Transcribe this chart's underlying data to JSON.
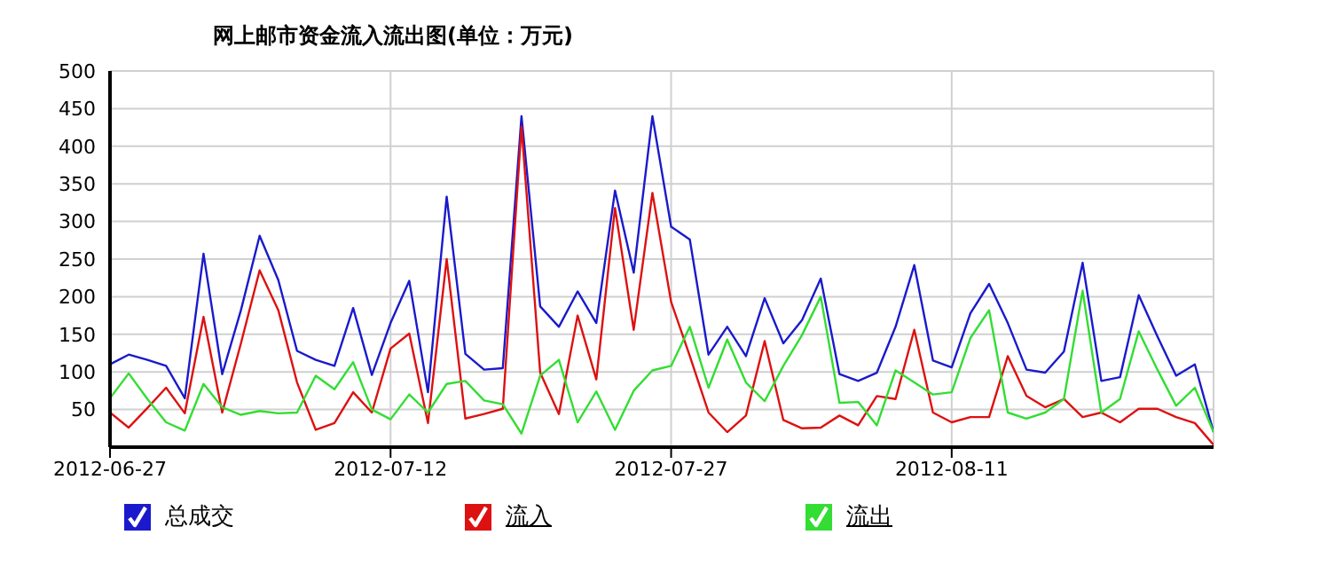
{
  "chart_data": {
    "type": "line",
    "title": "网上邮市资金流入流出图(单位：万元)",
    "x": [
      "2012-06-27",
      "2012-06-28",
      "2012-06-29",
      "2012-06-30",
      "2012-07-01",
      "2012-07-02",
      "2012-07-03",
      "2012-07-04",
      "2012-07-05",
      "2012-07-06",
      "2012-07-07",
      "2012-07-08",
      "2012-07-09",
      "2012-07-10",
      "2012-07-11",
      "2012-07-12",
      "2012-07-13",
      "2012-07-14",
      "2012-07-15",
      "2012-07-16",
      "2012-07-17",
      "2012-07-18",
      "2012-07-19",
      "2012-07-20",
      "2012-07-21",
      "2012-07-22",
      "2012-07-23",
      "2012-07-24",
      "2012-07-25",
      "2012-07-26",
      "2012-07-27",
      "2012-07-28",
      "2012-07-29",
      "2012-07-30",
      "2012-07-31",
      "2012-08-01",
      "2012-08-02",
      "2012-08-03",
      "2012-08-04",
      "2012-08-05",
      "2012-08-06",
      "2012-08-07",
      "2012-08-08",
      "2012-08-09",
      "2012-08-10",
      "2012-08-11",
      "2012-08-12",
      "2012-08-13",
      "2012-08-14",
      "2012-08-15",
      "2012-08-16",
      "2012-08-17",
      "2012-08-18",
      "2012-08-19",
      "2012-08-20",
      "2012-08-21",
      "2012-08-22",
      "2012-08-23",
      "2012-08-24",
      "2012-08-25"
    ],
    "series": [
      {
        "name": "总成交",
        "color": "#1a1acc",
        "values": [
          110,
          123,
          116,
          108,
          65,
          257,
          97,
          182,
          281,
          222,
          128,
          116,
          108,
          185,
          96,
          165,
          221,
          73,
          333,
          124,
          103,
          105,
          440,
          187,
          160,
          207,
          165,
          341,
          232,
          440,
          293,
          276,
          123,
          160,
          121,
          198,
          138,
          169,
          224,
          97,
          88,
          99,
          160,
          242,
          115,
          106,
          178,
          217,
          165,
          103,
          99,
          127,
          245,
          88,
          93,
          202,
          147,
          95,
          110,
          20
        ]
      },
      {
        "name": "流入",
        "color": "#dd1111",
        "values": [
          46,
          26,
          52,
          79,
          45,
          173,
          46,
          138,
          235,
          182,
          86,
          23,
          32,
          73,
          46,
          131,
          151,
          32,
          250,
          38,
          44,
          51,
          426,
          99,
          44,
          175,
          90,
          318,
          156,
          338,
          193,
          121,
          46,
          20,
          42,
          141,
          36,
          25,
          26,
          42,
          29,
          68,
          64,
          156,
          46,
          33,
          40,
          40,
          121,
          68,
          53,
          64,
          40,
          46,
          33,
          51,
          51,
          40,
          32,
          3
        ]
      },
      {
        "name": "流出",
        "color": "#33dd33",
        "values": [
          65,
          98,
          64,
          33,
          22,
          84,
          53,
          43,
          48,
          45,
          46,
          95,
          77,
          113,
          50,
          37,
          70,
          46,
          84,
          88,
          62,
          57,
          18,
          95,
          116,
          33,
          74,
          23,
          75,
          102,
          108,
          160,
          79,
          143,
          86,
          61,
          108,
          149,
          200,
          59,
          60,
          29,
          102,
          86,
          70,
          73,
          145,
          182,
          46,
          38,
          46,
          64,
          208,
          46,
          64,
          154,
          103,
          55,
          79,
          20
        ]
      }
    ],
    "xlim": [
      "2012-06-27",
      "2012-08-25"
    ],
    "xticks": [
      "2012-06-27",
      "2012-07-12",
      "2012-07-27",
      "2012-08-11"
    ],
    "ylim": [
      0,
      500
    ],
    "yticks": [
      50,
      100,
      150,
      200,
      250,
      300,
      350,
      400,
      450,
      500
    ],
    "grid": true,
    "legend": "bottom",
    "marker": "none",
    "line_style": "solid"
  }
}
